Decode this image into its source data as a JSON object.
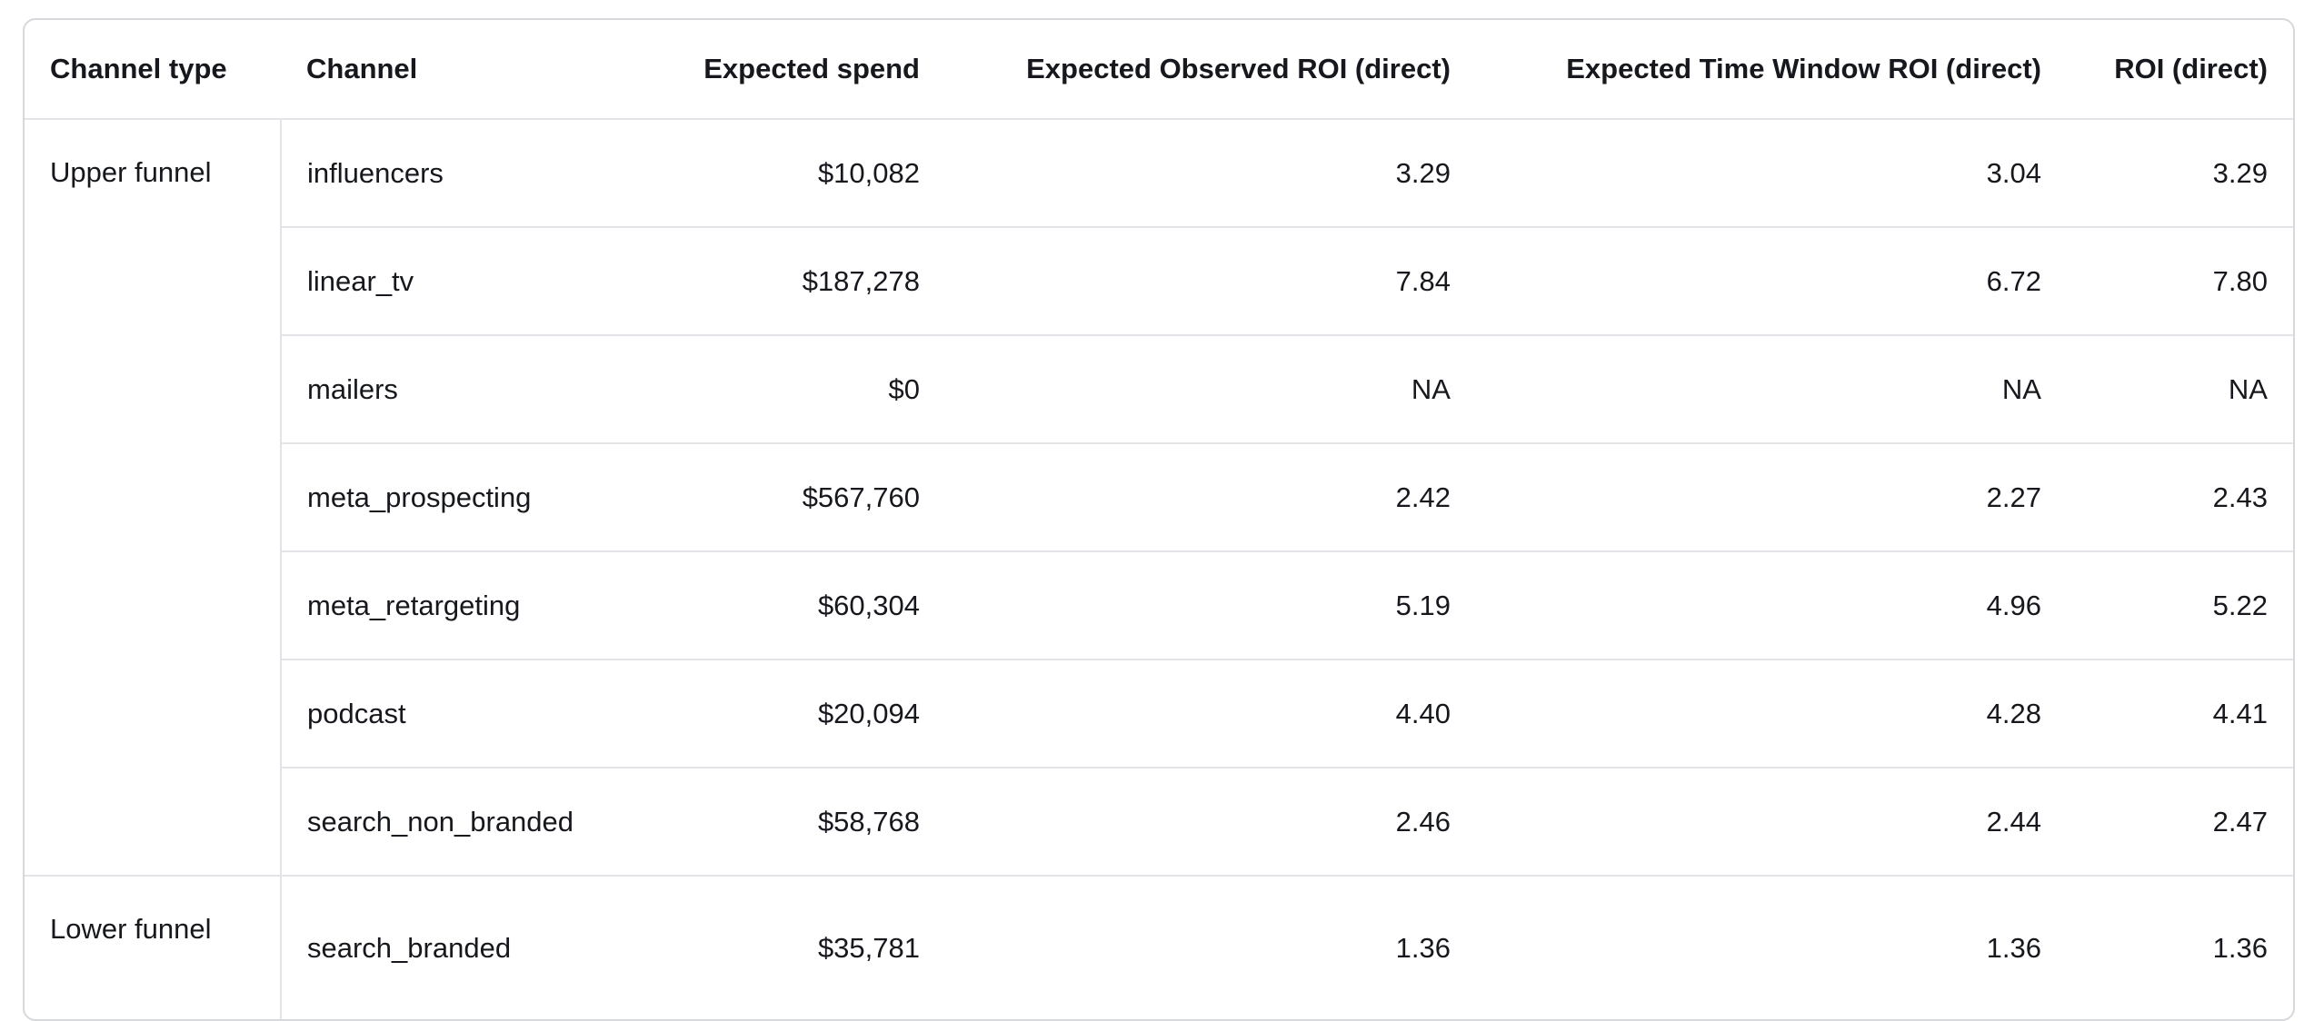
{
  "table": {
    "columns": [
      "Channel type",
      "Channel",
      "Expected spend",
      "Expected Observed ROI (direct)",
      "Expected Time Window ROI (direct)",
      "ROI (direct)"
    ],
    "groups": [
      {
        "type": "Upper funnel",
        "rows": [
          [
            "influencers",
            "$10,082",
            "3.29",
            "3.04",
            "3.29"
          ],
          [
            "linear_tv",
            "$187,278",
            "7.84",
            "6.72",
            "7.80"
          ],
          [
            "mailers",
            "$0",
            "NA",
            "NA",
            "NA"
          ],
          [
            "meta_prospecting",
            "$567,760",
            "2.42",
            "2.27",
            "2.43"
          ],
          [
            "meta_retargeting",
            "$60,304",
            "5.19",
            "4.96",
            "5.22"
          ],
          [
            "podcast",
            "$20,094",
            "4.40",
            "4.28",
            "4.41"
          ],
          [
            "search_non_branded",
            "$58,768",
            "2.46",
            "2.44",
            "2.47"
          ]
        ]
      },
      {
        "type": "Lower funnel",
        "rows": [
          [
            "search_branded",
            "$35,781",
            "1.36",
            "1.36",
            "1.36"
          ]
        ]
      }
    ]
  }
}
